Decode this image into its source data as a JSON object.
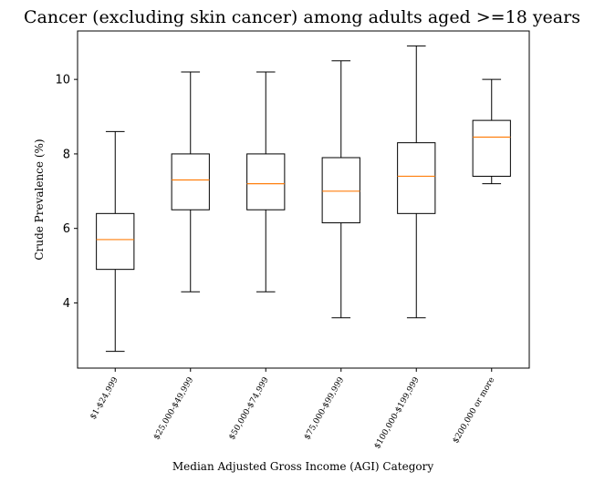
{
  "chart_data": {
    "type": "box",
    "title": "Cancer (excluding skin cancer) among adults aged >=18 years",
    "xlabel": "Median Adjusted Gross Income (AGI) Category",
    "ylabel": "Crude Prevalence (%)",
    "ylim": [
      2.25,
      11.3
    ],
    "yticks": [
      4,
      6,
      8,
      10
    ],
    "grid": false,
    "colors": {
      "box": "#000000",
      "median": "#ff7f0e",
      "background": "#ffffff"
    },
    "categories": [
      "$1-$24,999",
      "$25,000-$49,999",
      "$50,000-$74,999",
      "$75,000-$99,999",
      "$100,000-$199,999",
      "$200,000 or more"
    ],
    "series": [
      {
        "min": 2.7,
        "q1": 4.9,
        "median": 5.7,
        "q3": 6.4,
        "max": 8.6
      },
      {
        "min": 4.3,
        "q1": 6.5,
        "median": 7.3,
        "q3": 8.0,
        "max": 10.2
      },
      {
        "min": 4.3,
        "q1": 6.5,
        "median": 7.2,
        "q3": 8.0,
        "max": 10.2
      },
      {
        "min": 3.6,
        "q1": 6.15,
        "median": 7.0,
        "q3": 7.9,
        "max": 10.5
      },
      {
        "min": 3.6,
        "q1": 6.4,
        "median": 7.4,
        "q3": 8.3,
        "max": 10.9
      },
      {
        "min": 7.2,
        "q1": 7.4,
        "median": 8.45,
        "q3": 8.9,
        "max": 10.0
      }
    ]
  }
}
